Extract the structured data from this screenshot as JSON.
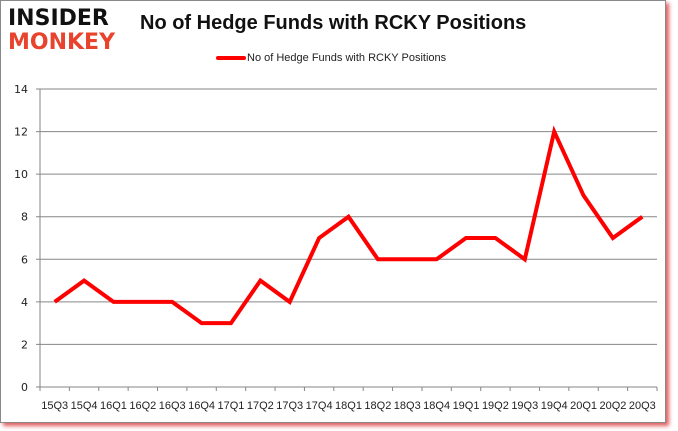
{
  "logo": {
    "line1": "INSIDER",
    "line2": "MONKEY"
  },
  "title": "No of Hedge Funds with RCKY Positions",
  "legend": {
    "label": "No of Hedge Funds with RCKY Positions",
    "color": "#ff0000"
  },
  "chart_data": {
    "type": "line",
    "title": "No of Hedge Funds with RCKY Positions",
    "xlabel": "",
    "ylabel": "",
    "ylim": [
      0,
      14
    ],
    "yticks": [
      0,
      2,
      4,
      6,
      8,
      10,
      12,
      14
    ],
    "grid": true,
    "legend_position": "top",
    "categories": [
      "15Q3",
      "15Q4",
      "16Q1",
      "16Q2",
      "16Q3",
      "16Q4",
      "17Q1",
      "17Q2",
      "17Q3",
      "17Q4",
      "18Q1",
      "18Q2",
      "18Q3",
      "18Q4",
      "19Q1",
      "19Q2",
      "19Q3",
      "19Q4",
      "20Q1",
      "20Q2",
      "20Q3"
    ],
    "series": [
      {
        "name": "No of Hedge Funds with RCKY Positions",
        "color": "#ff0000",
        "values": [
          4,
          5,
          4,
          4,
          4,
          3,
          3,
          5,
          4,
          7,
          8,
          6,
          6,
          6,
          7,
          7,
          6,
          12,
          9,
          7,
          8
        ]
      }
    ]
  }
}
